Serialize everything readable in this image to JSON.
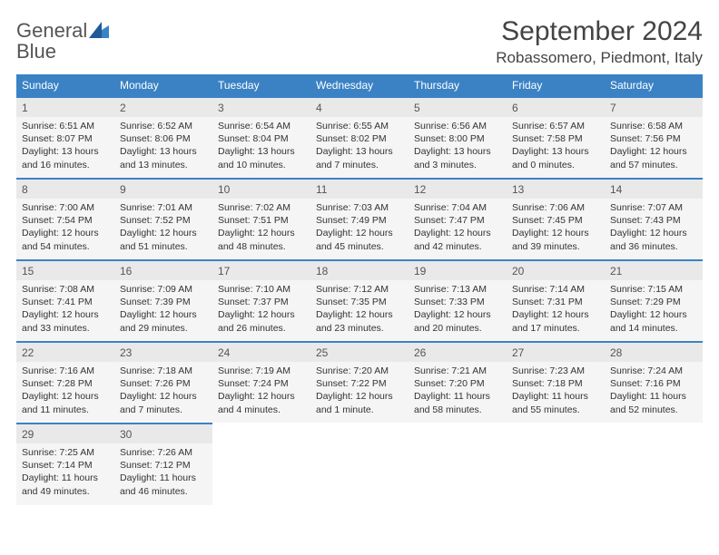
{
  "brand": {
    "word1": "General",
    "word2": "Blue"
  },
  "title": "September 2024",
  "location": "Robassomero, Piedmont, Italy",
  "colors": {
    "header_bg": "#3b82c4",
    "header_text": "#ffffff",
    "daynum_bg": "#e9e9e9",
    "cell_bg": "#f5f5f5",
    "text": "#333333",
    "row_border": "#3b82c4"
  },
  "weekdays": [
    "Sunday",
    "Monday",
    "Tuesday",
    "Wednesday",
    "Thursday",
    "Friday",
    "Saturday"
  ],
  "weeks": [
    [
      {
        "n": "1",
        "sr": "Sunrise: 6:51 AM",
        "ss": "Sunset: 8:07 PM",
        "d1": "Daylight: 13 hours",
        "d2": "and 16 minutes."
      },
      {
        "n": "2",
        "sr": "Sunrise: 6:52 AM",
        "ss": "Sunset: 8:06 PM",
        "d1": "Daylight: 13 hours",
        "d2": "and 13 minutes."
      },
      {
        "n": "3",
        "sr": "Sunrise: 6:54 AM",
        "ss": "Sunset: 8:04 PM",
        "d1": "Daylight: 13 hours",
        "d2": "and 10 minutes."
      },
      {
        "n": "4",
        "sr": "Sunrise: 6:55 AM",
        "ss": "Sunset: 8:02 PM",
        "d1": "Daylight: 13 hours",
        "d2": "and 7 minutes."
      },
      {
        "n": "5",
        "sr": "Sunrise: 6:56 AM",
        "ss": "Sunset: 8:00 PM",
        "d1": "Daylight: 13 hours",
        "d2": "and 3 minutes."
      },
      {
        "n": "6",
        "sr": "Sunrise: 6:57 AM",
        "ss": "Sunset: 7:58 PM",
        "d1": "Daylight: 13 hours",
        "d2": "and 0 minutes."
      },
      {
        "n": "7",
        "sr": "Sunrise: 6:58 AM",
        "ss": "Sunset: 7:56 PM",
        "d1": "Daylight: 12 hours",
        "d2": "and 57 minutes."
      }
    ],
    [
      {
        "n": "8",
        "sr": "Sunrise: 7:00 AM",
        "ss": "Sunset: 7:54 PM",
        "d1": "Daylight: 12 hours",
        "d2": "and 54 minutes."
      },
      {
        "n": "9",
        "sr": "Sunrise: 7:01 AM",
        "ss": "Sunset: 7:52 PM",
        "d1": "Daylight: 12 hours",
        "d2": "and 51 minutes."
      },
      {
        "n": "10",
        "sr": "Sunrise: 7:02 AM",
        "ss": "Sunset: 7:51 PM",
        "d1": "Daylight: 12 hours",
        "d2": "and 48 minutes."
      },
      {
        "n": "11",
        "sr": "Sunrise: 7:03 AM",
        "ss": "Sunset: 7:49 PM",
        "d1": "Daylight: 12 hours",
        "d2": "and 45 minutes."
      },
      {
        "n": "12",
        "sr": "Sunrise: 7:04 AM",
        "ss": "Sunset: 7:47 PM",
        "d1": "Daylight: 12 hours",
        "d2": "and 42 minutes."
      },
      {
        "n": "13",
        "sr": "Sunrise: 7:06 AM",
        "ss": "Sunset: 7:45 PM",
        "d1": "Daylight: 12 hours",
        "d2": "and 39 minutes."
      },
      {
        "n": "14",
        "sr": "Sunrise: 7:07 AM",
        "ss": "Sunset: 7:43 PM",
        "d1": "Daylight: 12 hours",
        "d2": "and 36 minutes."
      }
    ],
    [
      {
        "n": "15",
        "sr": "Sunrise: 7:08 AM",
        "ss": "Sunset: 7:41 PM",
        "d1": "Daylight: 12 hours",
        "d2": "and 33 minutes."
      },
      {
        "n": "16",
        "sr": "Sunrise: 7:09 AM",
        "ss": "Sunset: 7:39 PM",
        "d1": "Daylight: 12 hours",
        "d2": "and 29 minutes."
      },
      {
        "n": "17",
        "sr": "Sunrise: 7:10 AM",
        "ss": "Sunset: 7:37 PM",
        "d1": "Daylight: 12 hours",
        "d2": "and 26 minutes."
      },
      {
        "n": "18",
        "sr": "Sunrise: 7:12 AM",
        "ss": "Sunset: 7:35 PM",
        "d1": "Daylight: 12 hours",
        "d2": "and 23 minutes."
      },
      {
        "n": "19",
        "sr": "Sunrise: 7:13 AM",
        "ss": "Sunset: 7:33 PM",
        "d1": "Daylight: 12 hours",
        "d2": "and 20 minutes."
      },
      {
        "n": "20",
        "sr": "Sunrise: 7:14 AM",
        "ss": "Sunset: 7:31 PM",
        "d1": "Daylight: 12 hours",
        "d2": "and 17 minutes."
      },
      {
        "n": "21",
        "sr": "Sunrise: 7:15 AM",
        "ss": "Sunset: 7:29 PM",
        "d1": "Daylight: 12 hours",
        "d2": "and 14 minutes."
      }
    ],
    [
      {
        "n": "22",
        "sr": "Sunrise: 7:16 AM",
        "ss": "Sunset: 7:28 PM",
        "d1": "Daylight: 12 hours",
        "d2": "and 11 minutes."
      },
      {
        "n": "23",
        "sr": "Sunrise: 7:18 AM",
        "ss": "Sunset: 7:26 PM",
        "d1": "Daylight: 12 hours",
        "d2": "and 7 minutes."
      },
      {
        "n": "24",
        "sr": "Sunrise: 7:19 AM",
        "ss": "Sunset: 7:24 PM",
        "d1": "Daylight: 12 hours",
        "d2": "and 4 minutes."
      },
      {
        "n": "25",
        "sr": "Sunrise: 7:20 AM",
        "ss": "Sunset: 7:22 PM",
        "d1": "Daylight: 12 hours",
        "d2": "and 1 minute."
      },
      {
        "n": "26",
        "sr": "Sunrise: 7:21 AM",
        "ss": "Sunset: 7:20 PM",
        "d1": "Daylight: 11 hours",
        "d2": "and 58 minutes."
      },
      {
        "n": "27",
        "sr": "Sunrise: 7:23 AM",
        "ss": "Sunset: 7:18 PM",
        "d1": "Daylight: 11 hours",
        "d2": "and 55 minutes."
      },
      {
        "n": "28",
        "sr": "Sunrise: 7:24 AM",
        "ss": "Sunset: 7:16 PM",
        "d1": "Daylight: 11 hours",
        "d2": "and 52 minutes."
      }
    ],
    [
      {
        "n": "29",
        "sr": "Sunrise: 7:25 AM",
        "ss": "Sunset: 7:14 PM",
        "d1": "Daylight: 11 hours",
        "d2": "and 49 minutes."
      },
      {
        "n": "30",
        "sr": "Sunrise: 7:26 AM",
        "ss": "Sunset: 7:12 PM",
        "d1": "Daylight: 11 hours",
        "d2": "and 46 minutes."
      },
      null,
      null,
      null,
      null,
      null
    ]
  ]
}
